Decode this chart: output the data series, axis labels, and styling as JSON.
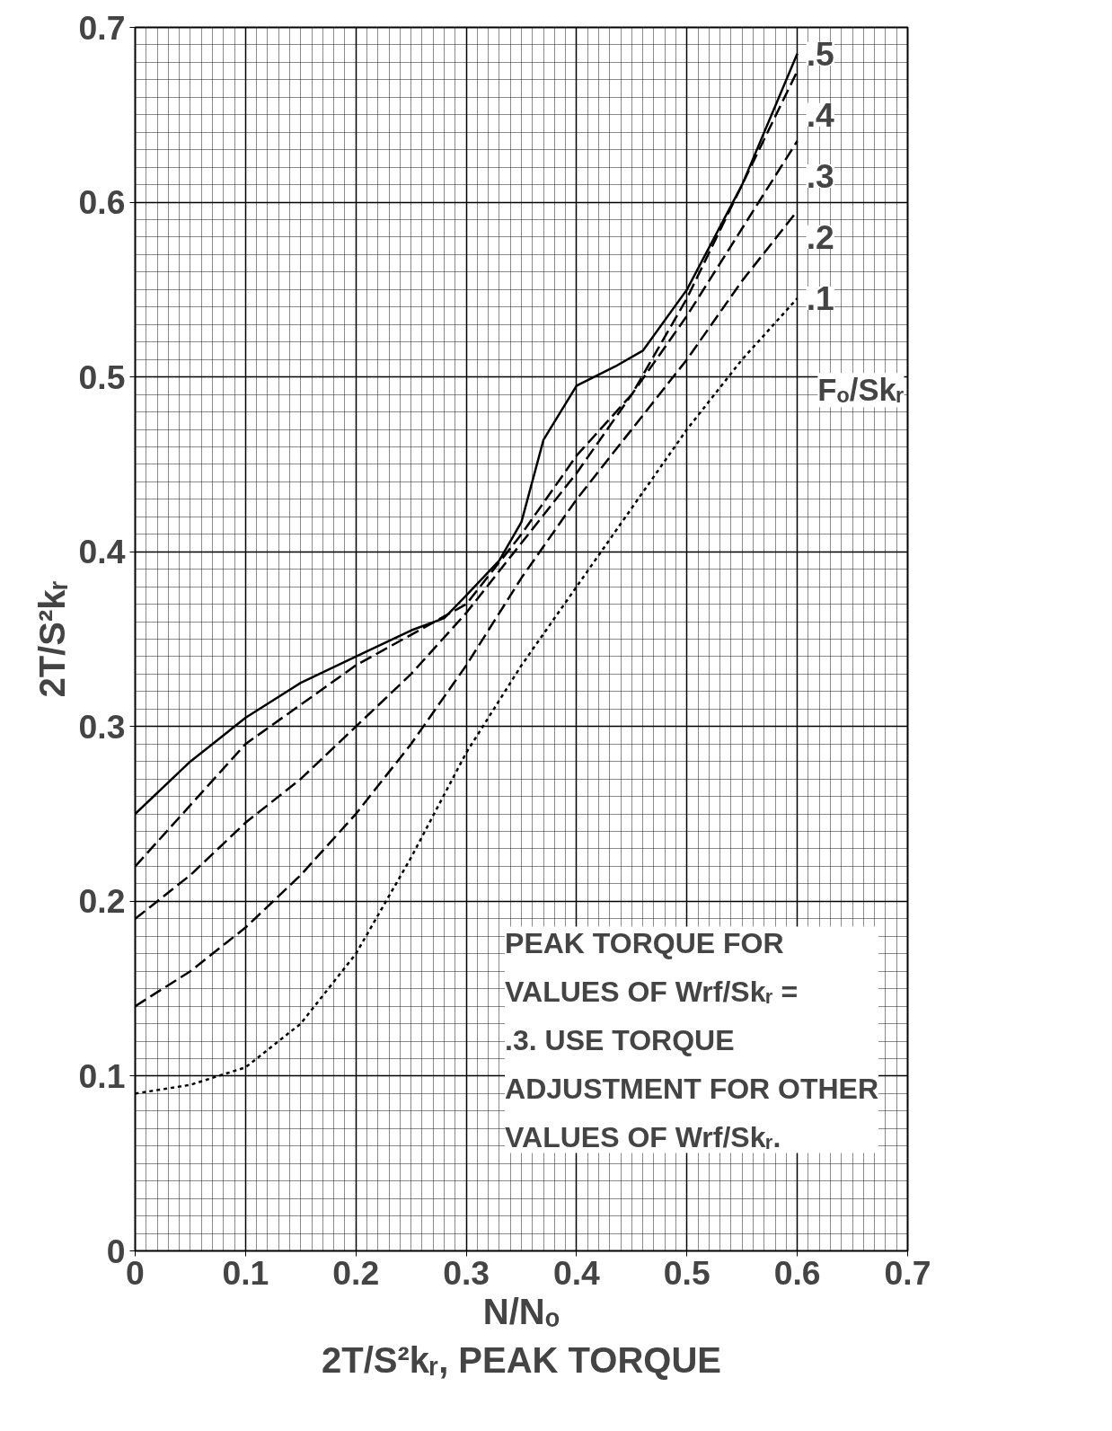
{
  "chart_data": {
    "type": "line",
    "xlabel": "N/Nₒ",
    "ylabel": "2T/S²kᵣ",
    "legend_title": "Fₒ/Skᵣ",
    "x": [
      0,
      0.05,
      0.1,
      0.15,
      0.2,
      0.25,
      0.28,
      0.3,
      0.33,
      0.35,
      0.37,
      0.4,
      0.435,
      0.46,
      0.5,
      0.55,
      0.6
    ],
    "series": [
      {
        "name": ".5",
        "color": "#000000",
        "line_style": "solid",
        "values": [
          0.25,
          0.28,
          0.305,
          0.325,
          0.34,
          0.355,
          0.362,
          0.375,
          0.395,
          0.417,
          0.464,
          0.495,
          0.506,
          0.515,
          0.55,
          0.61,
          0.685
        ]
      },
      {
        "name": ".4",
        "color": "#000000",
        "line_style": "dashed",
        "x": [
          0,
          0.1,
          0.2,
          0.3,
          0.35,
          0.4,
          0.45,
          0.5,
          0.55,
          0.6
        ],
        "values": [
          0.22,
          0.29,
          0.335,
          0.37,
          0.41,
          0.455,
          0.49,
          0.545,
          0.61,
          0.675
        ]
      },
      {
        "name": ".3",
        "color": "#000000",
        "line_style": "dashed",
        "x": [
          0,
          0.05,
          0.1,
          0.15,
          0.2,
          0.25,
          0.3,
          0.35,
          0.4,
          0.45,
          0.5,
          0.55,
          0.6
        ],
        "values": [
          0.19,
          0.215,
          0.245,
          0.27,
          0.3,
          0.33,
          0.365,
          0.405,
          0.445,
          0.49,
          0.535,
          0.585,
          0.635
        ]
      },
      {
        "name": ".2",
        "color": "#000000",
        "line_style": "dashed",
        "x": [
          0,
          0.05,
          0.1,
          0.15,
          0.2,
          0.25,
          0.3,
          0.35,
          0.4,
          0.45,
          0.5,
          0.55,
          0.6
        ],
        "values": [
          0.14,
          0.16,
          0.185,
          0.215,
          0.25,
          0.29,
          0.335,
          0.385,
          0.43,
          0.47,
          0.51,
          0.555,
          0.595
        ]
      },
      {
        "name": ".1",
        "color": "#000000",
        "line_style": "dotted",
        "x": [
          0,
          0.05,
          0.1,
          0.15,
          0.2,
          0.25,
          0.3,
          0.35,
          0.4,
          0.45,
          0.5,
          0.55,
          0.6
        ],
        "values": [
          0.09,
          0.095,
          0.105,
          0.13,
          0.17,
          0.225,
          0.285,
          0.335,
          0.38,
          0.425,
          0.47,
          0.51,
          0.545
        ]
      }
    ],
    "xlim": [
      0,
      0.7
    ],
    "ylim": [
      0,
      0.7
    ],
    "xticks": [
      0,
      0.1,
      0.2,
      0.3,
      0.4,
      0.5,
      0.6,
      0.7
    ],
    "yticks": [
      0,
      0.1,
      0.2,
      0.3,
      0.4,
      0.5,
      0.6,
      0.7
    ],
    "grid": true,
    "annotations": [
      "PEAK TORQUE FOR VALUES OF Wrf/Skᵣ = .3. USE TORQUE ADJUSTMENT FOR OTHER VALUES OF Wrf/Skᵣ.",
      "2T/S²kᵣ, PEAK TORQUE"
    ]
  }
}
